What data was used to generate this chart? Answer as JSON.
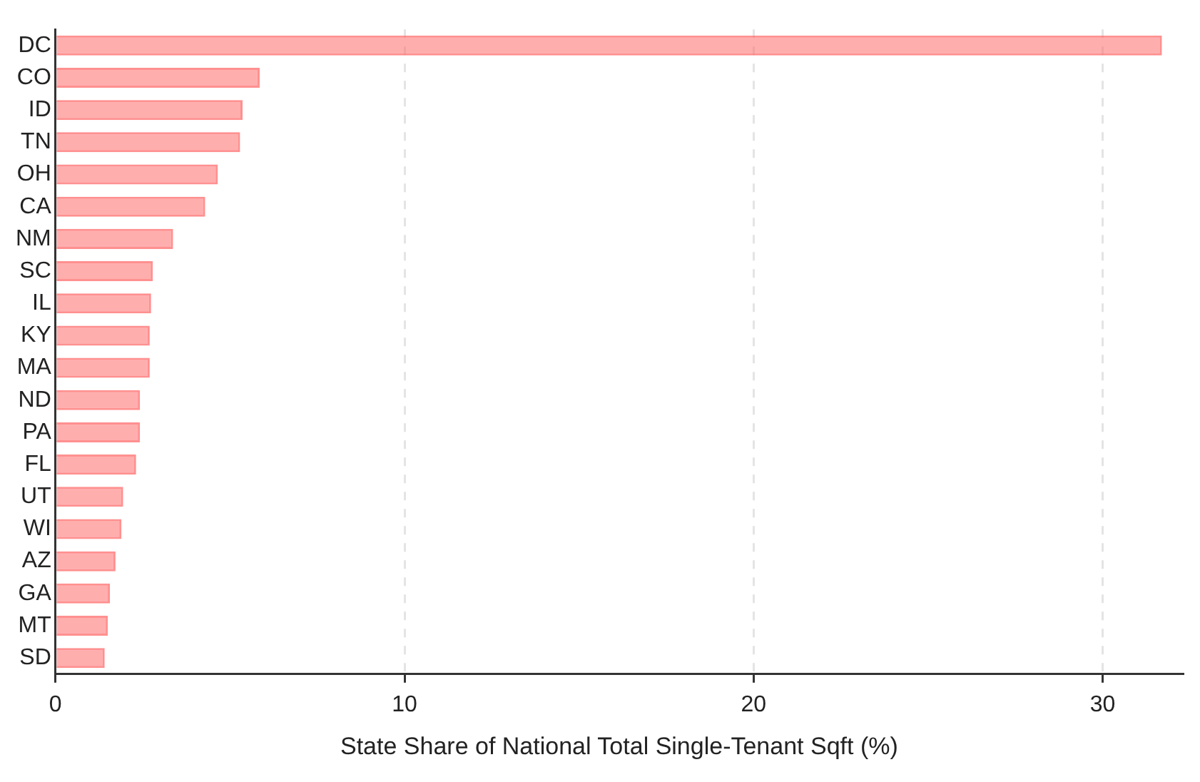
{
  "chart_data": {
    "type": "bar",
    "orientation": "horizontal",
    "xlabel": "State Share of National Total Single-Tenant Sqft (%)",
    "categories": [
      "DC",
      "CO",
      "ID",
      "TN",
      "OH",
      "CA",
      "NM",
      "SC",
      "IL",
      "KY",
      "MA",
      "ND",
      "PA",
      "FL",
      "UT",
      "WI",
      "AZ",
      "GA",
      "MT",
      "SD"
    ],
    "values": [
      31.7,
      5.85,
      5.36,
      5.29,
      4.65,
      4.29,
      3.37,
      2.79,
      2.74,
      2.7,
      2.7,
      2.42,
      2.42,
      2.31,
      1.94,
      1.89,
      1.72,
      1.56,
      1.5,
      1.41
    ],
    "color": "#ff6b6b",
    "xlim": [
      0,
      32.3
    ],
    "xticks": [
      0,
      10,
      20,
      30
    ],
    "grid": "x",
    "legend": false
  }
}
